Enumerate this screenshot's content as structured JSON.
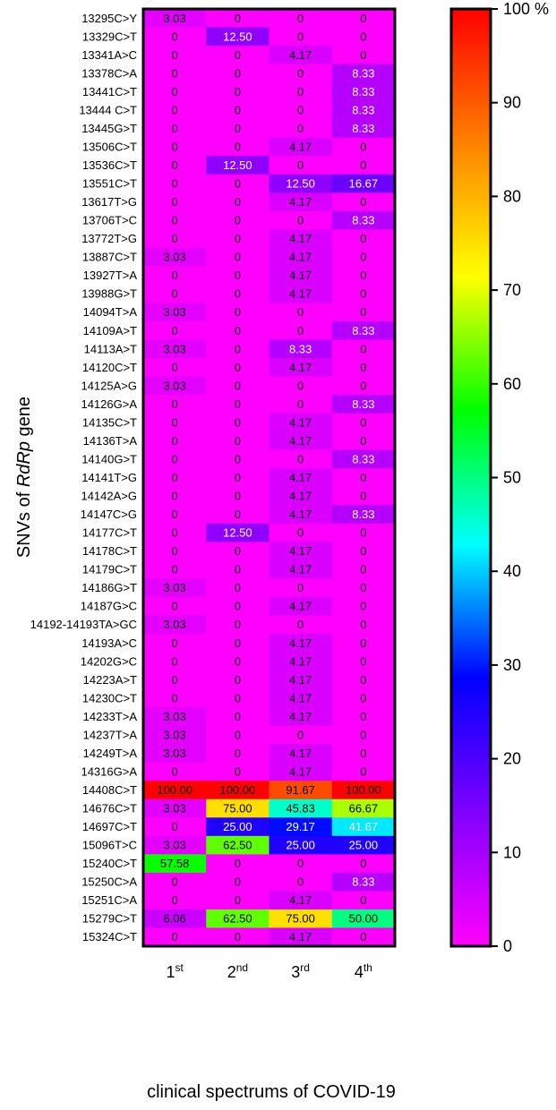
{
  "chart_data": {
    "type": "heatmap",
    "title": "",
    "xlabel": "clinical spectrums of  COVID-19",
    "ylabel_parts": [
      "SNVs of ",
      "RdRp",
      " gene"
    ],
    "columns": [
      {
        "base": "1",
        "sup": "st"
      },
      {
        "base": "2",
        "sup": "nd"
      },
      {
        "base": "3",
        "sup": "rd"
      },
      {
        "base": "4",
        "sup": "th"
      }
    ],
    "rows": [
      "13295C>Y",
      "13329C>T",
      "13341A>C",
      "13378C>A",
      "13441C>T",
      "13444 C>T",
      "13445G>T",
      "13506C>T",
      "13536C>T",
      "13551C>T",
      "13617T>G",
      "13706T>C",
      "13772T>G",
      "13887C>T",
      "13927T>A",
      "13988G>T",
      "14094T>A",
      "14109A>T",
      "14113A>T",
      "14120C>T",
      "14125A>G",
      "14126G>A",
      "14135C>T",
      "14136T>A",
      "14140G>T",
      "14141T>G",
      "14142A>G",
      "14147C>G",
      "14177C>T",
      "14178C>T",
      "14179C>T",
      "14186G>T",
      "14187G>C",
      "14192-14193TA>GC",
      "14193A>C",
      "14202G>C",
      "14223A>T",
      "14230C>T",
      "14233T>A",
      "14237T>A",
      "14249T>A",
      "14316G>A",
      "14408C>T",
      "14676C>T",
      "14697C>T",
      "15096T>C",
      "15240C>T",
      "15250C>A",
      "15251C>A",
      "15279C>T",
      "15324C>T"
    ],
    "values": [
      [
        "3.03",
        "0",
        "0",
        "0"
      ],
      [
        "0",
        "12.50",
        "0",
        "0"
      ],
      [
        "0",
        "0",
        "4.17",
        "0"
      ],
      [
        "0",
        "0",
        "0",
        "8.33"
      ],
      [
        "0",
        "0",
        "0",
        "8.33"
      ],
      [
        "0",
        "0",
        "0",
        "8.33"
      ],
      [
        "0",
        "0",
        "0",
        "8.33"
      ],
      [
        "0",
        "0",
        "4.17",
        "0"
      ],
      [
        "0",
        "12.50",
        "0",
        "0"
      ],
      [
        "0",
        "0",
        "12.50",
        "16.67"
      ],
      [
        "0",
        "0",
        "4.17",
        "0"
      ],
      [
        "0",
        "0",
        "0",
        "8.33"
      ],
      [
        "0",
        "0",
        "4.17",
        "0"
      ],
      [
        "3.03",
        "0",
        "4.17",
        "0"
      ],
      [
        "0",
        "0",
        "4.17",
        "0"
      ],
      [
        "0",
        "0",
        "4.17",
        "0"
      ],
      [
        "3.03",
        "0",
        "0",
        "0"
      ],
      [
        "0",
        "0",
        "0",
        "8.33"
      ],
      [
        "3.03",
        "0",
        "8.33",
        "0"
      ],
      [
        "0",
        "0",
        "4.17",
        "0"
      ],
      [
        "3.03",
        "0",
        "0",
        "0"
      ],
      [
        "0",
        "0",
        "0",
        "8.33"
      ],
      [
        "0",
        "0",
        "4.17",
        "0"
      ],
      [
        "0",
        "0",
        "4.17",
        "0"
      ],
      [
        "0",
        "0",
        "0",
        "8.33"
      ],
      [
        "0",
        "0",
        "4.17",
        "0"
      ],
      [
        "0",
        "0",
        "4.17",
        "0"
      ],
      [
        "0",
        "0",
        "4.17",
        "8.33"
      ],
      [
        "0",
        "12.50",
        "0",
        "0"
      ],
      [
        "0",
        "0",
        "4.17",
        "0"
      ],
      [
        "0",
        "0",
        "4.17",
        "0"
      ],
      [
        "3.03",
        "0",
        "0",
        "0"
      ],
      [
        "0",
        "0",
        "4.17",
        "0"
      ],
      [
        "3.03",
        "0",
        "0",
        "0"
      ],
      [
        "0",
        "0",
        "4.17",
        "0"
      ],
      [
        "0",
        "0",
        "4.17",
        "0"
      ],
      [
        "0",
        "0",
        "4.17",
        "0"
      ],
      [
        "0",
        "0",
        "4.17",
        "0"
      ],
      [
        "3.03",
        "0",
        "4.17",
        "0"
      ],
      [
        "3.03",
        "0",
        "0",
        "0"
      ],
      [
        "3.03",
        "0",
        "4.17",
        "0"
      ],
      [
        "0",
        "0",
        "4.17",
        "0"
      ],
      [
        "100.00",
        "100.00",
        "91.67",
        "100.00"
      ],
      [
        "3.03",
        "75.00",
        "45.83",
        "66.67"
      ],
      [
        "0",
        "25.00",
        "29.17",
        "41.67"
      ],
      [
        "3.03",
        "62.50",
        "25.00",
        "25.00"
      ],
      [
        "57.58",
        "0",
        "0",
        "0"
      ],
      [
        "0",
        "0",
        "0",
        "8.33"
      ],
      [
        "0",
        "0",
        "4.17",
        "0"
      ],
      [
        "6.06",
        "62.50",
        "75.00",
        "50.00"
      ],
      [
        "0",
        "0",
        "4.17",
        "0"
      ]
    ],
    "colorbar": {
      "range": [
        0,
        100
      ],
      "ticks": [
        "0",
        "10",
        "20",
        "30",
        "40",
        "50",
        "60",
        "70",
        "80",
        "90",
        "100 %"
      ],
      "stops": [
        "#ff00ff",
        "#8000ff",
        "#0000ff",
        "#00ffff",
        "#00ff00",
        "#ffff00",
        "#ff8000",
        "#ff0000"
      ]
    }
  }
}
